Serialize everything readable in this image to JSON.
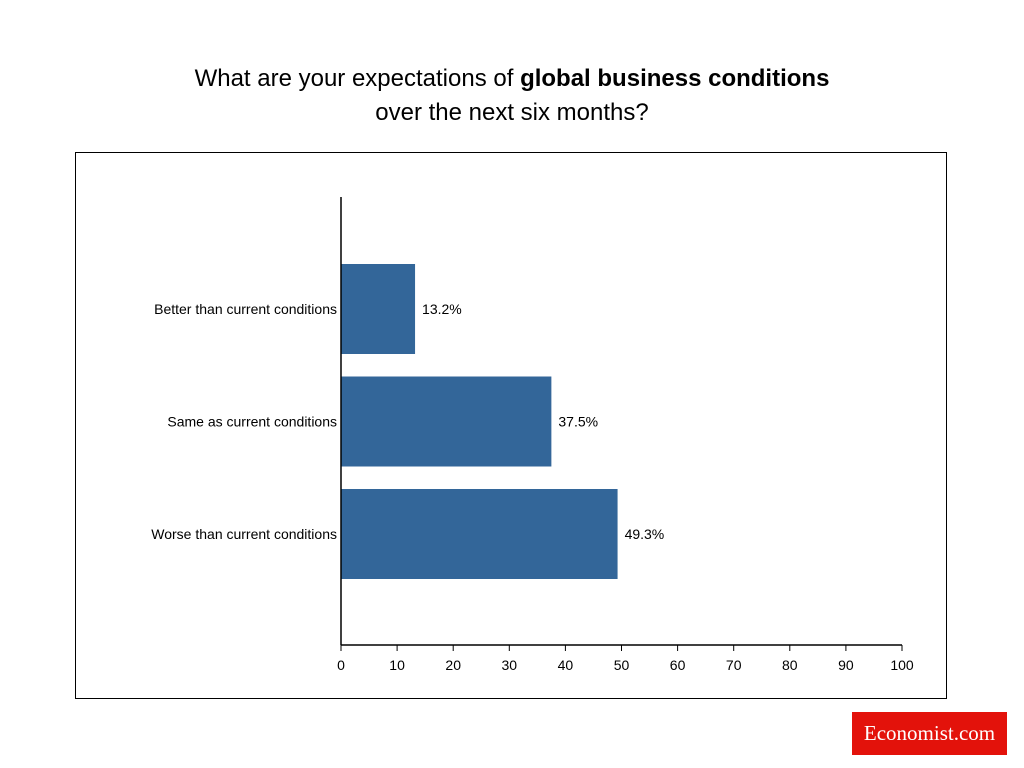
{
  "title": {
    "prefix": "What are your expectations of ",
    "emphasis": "global business conditions",
    "line2": "over the next six months?"
  },
  "logo": {
    "text": "Economist.com",
    "color": "#e3120b"
  },
  "chart_data": {
    "type": "bar",
    "orientation": "horizontal",
    "categories": [
      "Better than current conditions",
      "Same as current conditions",
      "Worse than current conditions"
    ],
    "values": [
      13.2,
      37.5,
      49.3
    ],
    "data_labels": [
      "13.2%",
      "37.5%",
      "49.3%"
    ],
    "xlim": [
      0,
      100
    ],
    "xticks": [
      0,
      10,
      20,
      30,
      40,
      50,
      60,
      70,
      80,
      90,
      100
    ],
    "grid": false,
    "bar_color": "#336699"
  }
}
